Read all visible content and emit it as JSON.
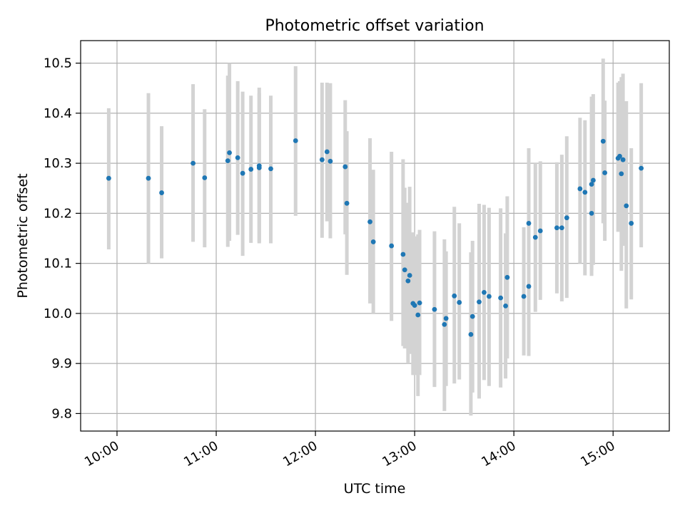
{
  "chart_data": {
    "type": "scatter",
    "title": "Photometric offset variation",
    "xlabel": "UTC time",
    "ylabel": "Photometric offset",
    "x_tick_labels": [
      "10:00",
      "11:00",
      "12:00",
      "13:00",
      "14:00",
      "15:00"
    ],
    "y_tick_labels": [
      "9.8",
      "9.9",
      "10.0",
      "10.1",
      "10.2",
      "10.3",
      "10.4",
      "10.5"
    ],
    "xlim": [
      "09:38",
      "15:34"
    ],
    "ylim": [
      9.765,
      10.545
    ],
    "grid": true,
    "colors": {
      "point": "#1f77b4",
      "errorbar": "#d3d3d3",
      "grid": "#b0b0b0"
    },
    "series": [
      {
        "x": [
          "09:55",
          "10:19",
          "10:27",
          "10:46",
          "10:53",
          "11:07",
          "11:08",
          "11:13",
          "11:16",
          "11:21",
          "11:26",
          "11:26",
          "11:33",
          "11:48",
          "12:04",
          "12:07",
          "12:09",
          "12:18",
          "12:19",
          "12:33",
          "12:35",
          "12:46",
          "12:53",
          "12:54",
          "12:56",
          "12:57",
          "12:59",
          "13:00",
          "13:02",
          "13:03",
          "13:12",
          "13:18",
          "13:19",
          "13:24",
          "13:27",
          "13:34",
          "13:35",
          "13:39",
          "13:42",
          "13:45",
          "13:52",
          "13:55",
          "13:56",
          "14:06",
          "14:09",
          "14:09",
          "14:13",
          "14:16",
          "14:26",
          "14:29",
          "14:32",
          "14:40",
          "14:43",
          "14:47",
          "14:47",
          "14:48",
          "14:54",
          "14:55",
          "15:03",
          "15:04",
          "15:05",
          "15:06",
          "15:08",
          "15:11",
          "15:17"
        ],
        "y": [
          10.27,
          10.27,
          10.241,
          10.3,
          10.271,
          10.305,
          10.321,
          10.311,
          10.28,
          10.288,
          10.291,
          10.295,
          10.289,
          10.345,
          10.307,
          10.323,
          10.304,
          10.293,
          10.22,
          10.183,
          10.143,
          10.135,
          10.118,
          10.087,
          10.065,
          10.076,
          10.02,
          10.016,
          9.997,
          10.021,
          10.008,
          9.978,
          9.99,
          10.035,
          10.022,
          9.958,
          9.994,
          10.023,
          10.042,
          10.034,
          10.031,
          10.015,
          10.072,
          10.034,
          10.054,
          10.18,
          10.152,
          10.165,
          10.171,
          10.171,
          10.191,
          10.249,
          10.242,
          10.2,
          10.258,
          10.266,
          10.344,
          10.281,
          10.31,
          10.314,
          10.279,
          10.307,
          10.215,
          10.18,
          10.29
        ],
        "yerr_low": [
          10.128,
          10.1,
          10.11,
          10.143,
          10.132,
          10.133,
          10.145,
          10.157,
          10.115,
          10.141,
          10.14,
          10.142,
          10.14,
          10.195,
          10.151,
          10.184,
          10.15,
          10.158,
          10.077,
          10.02,
          10.0,
          9.985,
          9.935,
          9.93,
          9.9,
          9.919,
          9.877,
          9.877,
          9.835,
          9.877,
          9.853,
          9.805,
          9.855,
          9.86,
          9.868,
          9.796,
          9.842,
          9.83,
          9.867,
          9.855,
          9.852,
          9.87,
          9.91,
          9.916,
          9.915,
          10.03,
          10.003,
          10.027,
          10.04,
          10.024,
          10.031,
          10.1,
          10.076,
          10.075,
          10.086,
          10.097,
          10.18,
          10.145,
          10.163,
          10.165,
          10.085,
          10.135,
          10.01,
          10.028,
          10.132
        ],
        "yerr_high": [
          10.41,
          10.44,
          10.374,
          10.458,
          10.408,
          10.475,
          10.5,
          10.464,
          10.443,
          10.435,
          10.44,
          10.451,
          10.435,
          10.494,
          10.461,
          10.461,
          10.46,
          10.426,
          10.364,
          10.35,
          10.287,
          10.323,
          10.308,
          10.251,
          10.221,
          10.253,
          10.162,
          10.154,
          10.158,
          10.167,
          10.164,
          10.148,
          10.124,
          10.213,
          10.18,
          10.122,
          10.145,
          10.219,
          10.217,
          10.211,
          10.21,
          10.16,
          10.234,
          10.172,
          10.193,
          10.33,
          10.3,
          10.304,
          10.302,
          10.317,
          10.354,
          10.391,
          10.386,
          10.325,
          10.433,
          10.438,
          10.509,
          10.425,
          10.461,
          10.464,
          10.472,
          10.479,
          10.424,
          10.33,
          10.46
        ]
      }
    ]
  }
}
